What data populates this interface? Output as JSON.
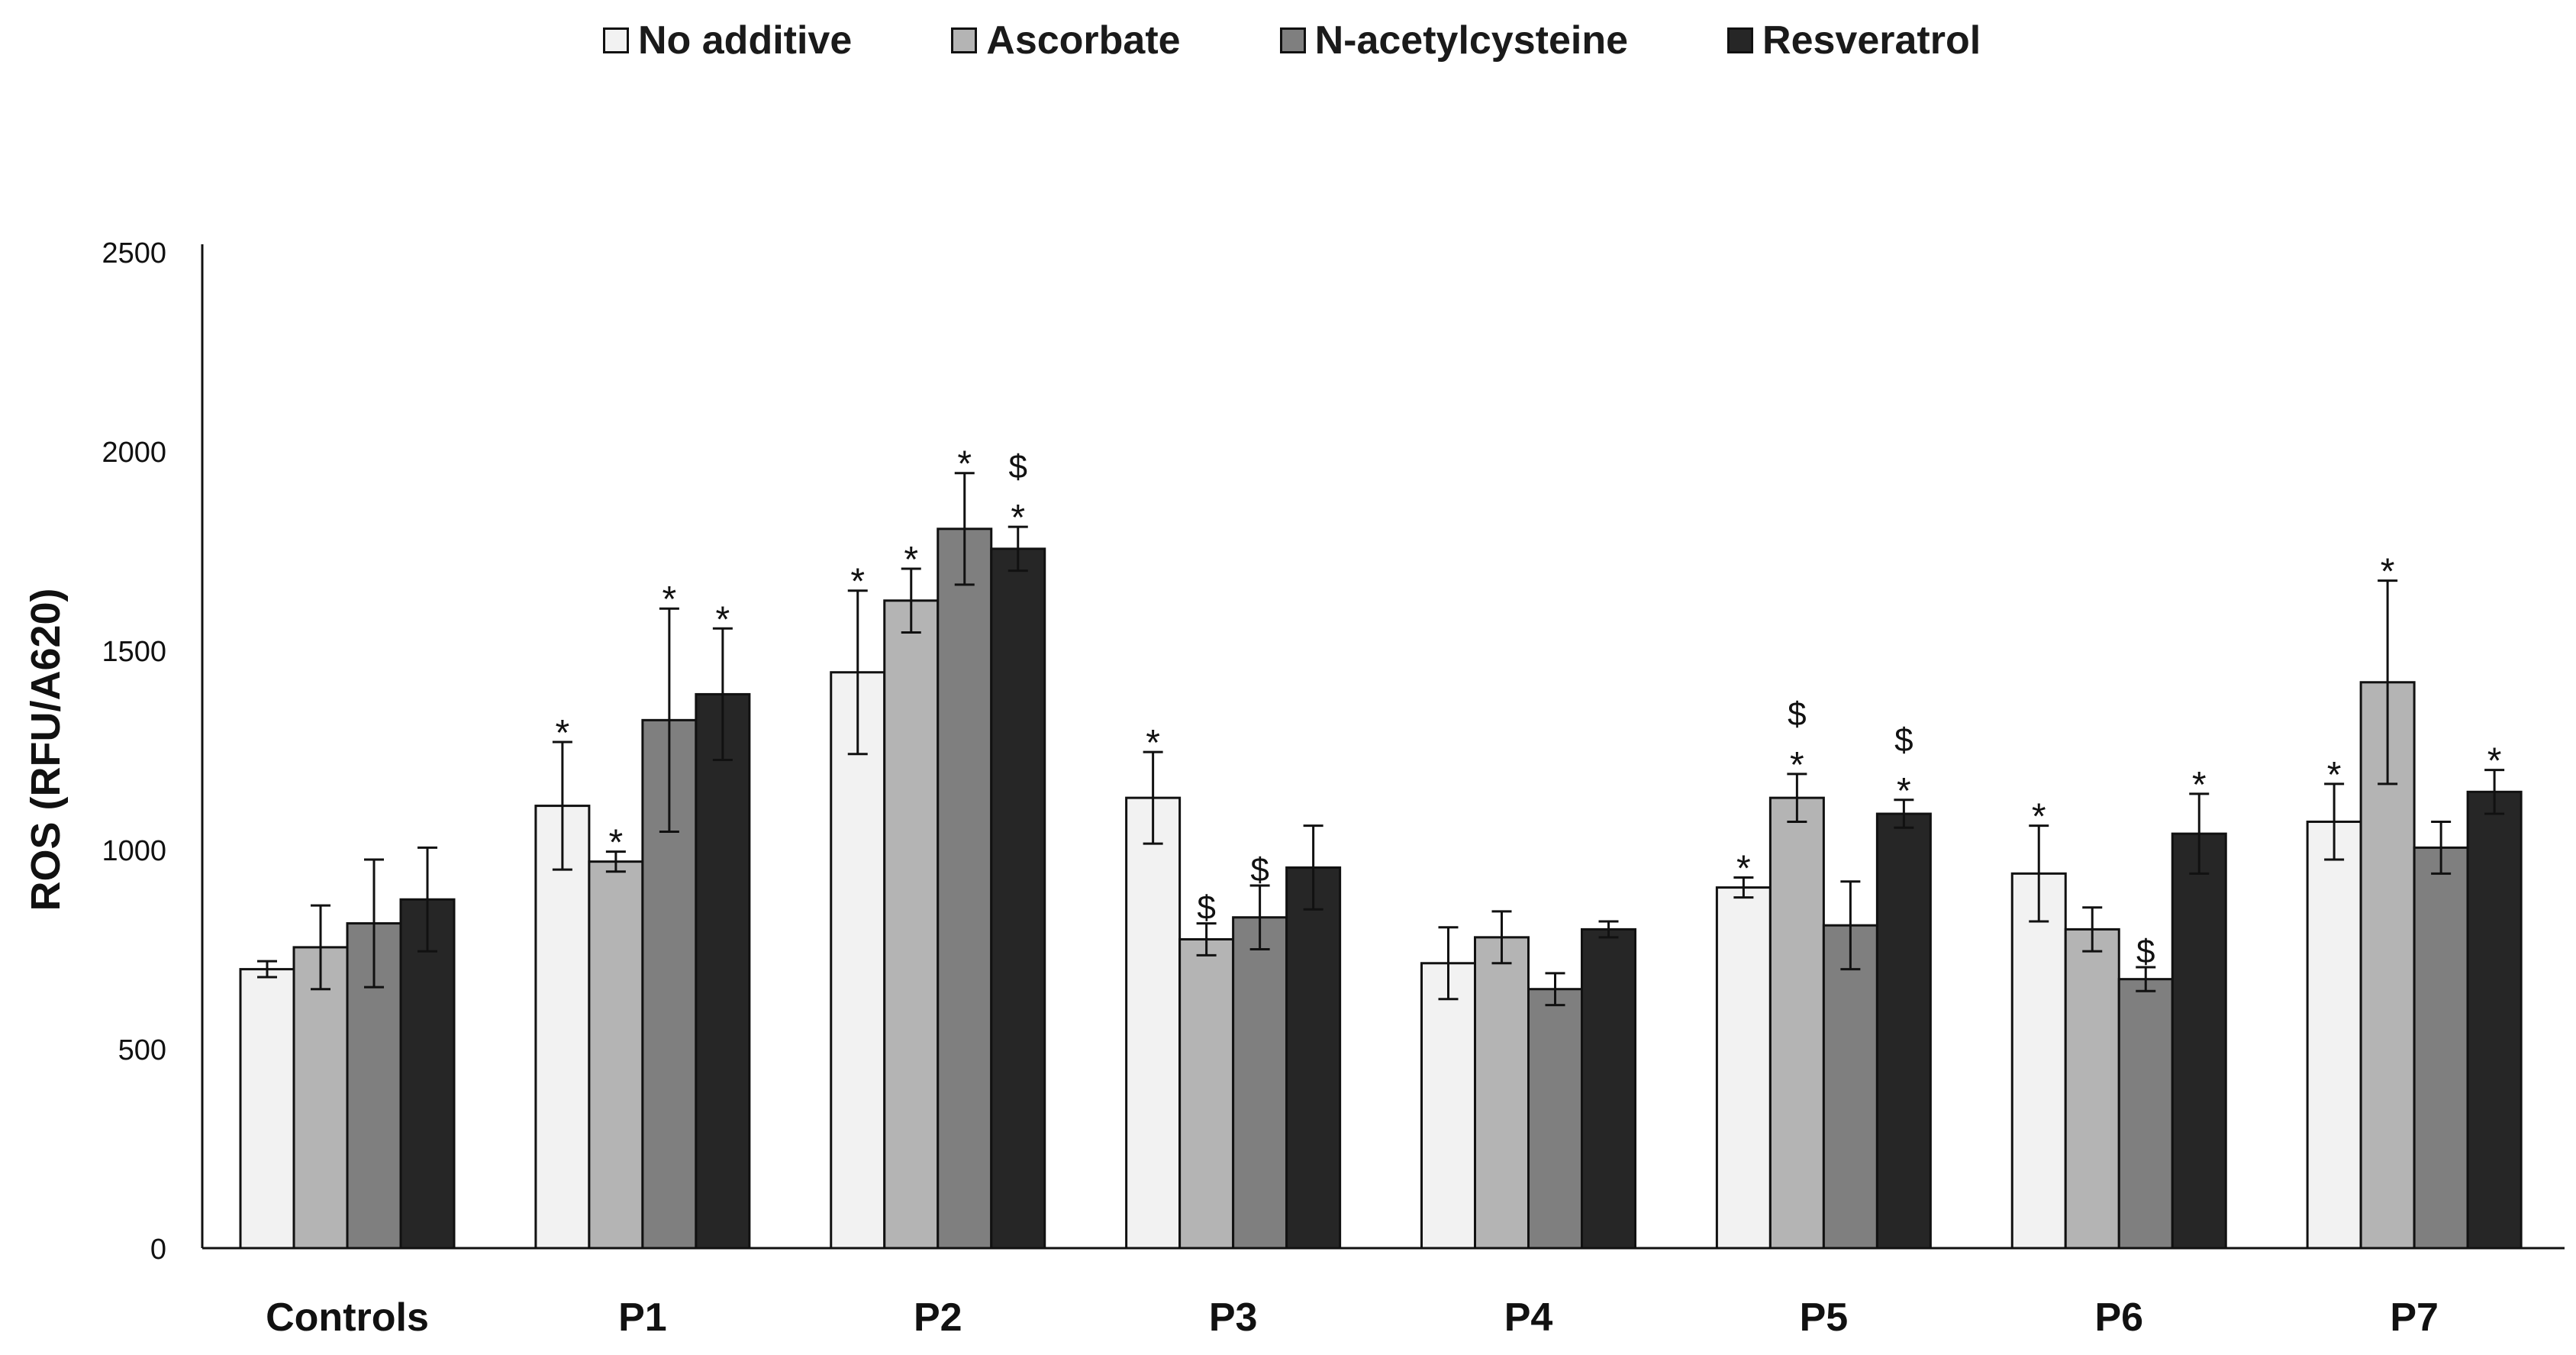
{
  "chart_data": {
    "type": "bar",
    "title": "",
    "xlabel": "",
    "ylabel": "ROS (RFU/A620)",
    "ylim": [
      0,
      2500
    ],
    "yticks": [
      0,
      500,
      1000,
      1500,
      2000,
      2500
    ],
    "grid": false,
    "legend_position": "top",
    "categories": [
      "Controls",
      "P1",
      "P2",
      "P3",
      "P4",
      "P5",
      "P6",
      "P7"
    ],
    "series": [
      {
        "name": "No additive",
        "color": "#f2f2f2",
        "values": [
          700,
          1110,
          1445,
          1130,
          715,
          905,
          940,
          1070
        ],
        "errors": [
          20,
          160,
          205,
          115,
          90,
          25,
          120,
          95
        ],
        "marks": [
          "",
          "*",
          "*",
          "*",
          "",
          "*",
          "*",
          "*"
        ]
      },
      {
        "name": "Ascorbate",
        "color": "#b4b4b4",
        "values": [
          755,
          970,
          1625,
          775,
          780,
          1130,
          800,
          1420
        ],
        "errors": [
          105,
          25,
          80,
          40,
          65,
          60,
          55,
          255
        ],
        "marks": [
          "",
          "*",
          "*",
          "$",
          "",
          "$*",
          "",
          "*"
        ]
      },
      {
        "name": "N-acetylcysteine",
        "color": "#7f7f7f",
        "values": [
          815,
          1325,
          1805,
          830,
          650,
          810,
          675,
          1005
        ],
        "errors": [
          160,
          280,
          140,
          80,
          40,
          110,
          30,
          65
        ],
        "marks": [
          "",
          "*",
          "*",
          "$",
          "",
          "",
          "$",
          ""
        ]
      },
      {
        "name": "Resveratrol",
        "color": "#262626",
        "values": [
          875,
          1390,
          1755,
          955,
          800,
          1090,
          1040,
          1145
        ],
        "errors": [
          130,
          165,
          55,
          105,
          20,
          35,
          100,
          55
        ],
        "marks": [
          "",
          "*",
          "$*",
          "",
          "",
          "$*",
          "*",
          "*"
        ]
      }
    ]
  }
}
